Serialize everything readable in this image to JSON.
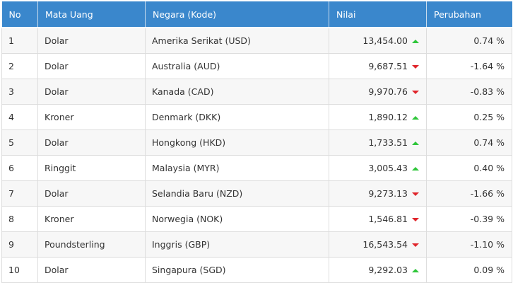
{
  "headers": [
    "No",
    "Mata Uang",
    "Negara (Kode)",
    "Nilai",
    "Perubahan"
  ],
  "rows": [
    {
      "no": "1",
      "currency": "Dolar",
      "country": "Amerika Serikat (USD)",
      "value": "13,454.00",
      "trend": "up",
      "change": "0.74 %"
    },
    {
      "no": "2",
      "currency": "Dolar",
      "country": "Australia (AUD)",
      "value": "9,687.51",
      "trend": "down",
      "change": "-1.64 %"
    },
    {
      "no": "3",
      "currency": "Dolar",
      "country": "Kanada (CAD)",
      "value": "9,970.76",
      "trend": "down",
      "change": "-0.83 %"
    },
    {
      "no": "4",
      "currency": "Kroner",
      "country": "Denmark (DKK)",
      "value": "1,890.12",
      "trend": "up",
      "change": "0.25 %"
    },
    {
      "no": "5",
      "currency": "Dolar",
      "country": "Hongkong (HKD)",
      "value": "1,733.51",
      "trend": "up",
      "change": "0.74 %"
    },
    {
      "no": "6",
      "currency": "Ringgit",
      "country": "Malaysia (MYR)",
      "value": "3,005.43",
      "trend": "up",
      "change": "0.40 %"
    },
    {
      "no": "7",
      "currency": "Dolar",
      "country": "Selandia Baru (NZD)",
      "value": "9,273.13",
      "trend": "down",
      "change": "-1.66 %"
    },
    {
      "no": "8",
      "currency": "Kroner",
      "country": "Norwegia (NOK)",
      "value": "1,546.81",
      "trend": "down",
      "change": "-0.39 %"
    },
    {
      "no": "9",
      "currency": "Poundsterling",
      "country": "Inggris (GBP)",
      "value": "16,543.54",
      "trend": "down",
      "change": "-1.10 %"
    },
    {
      "no": "10",
      "currency": "Dolar",
      "country": "Singapura (SGD)",
      "value": "9,292.03",
      "trend": "up",
      "change": "0.09 %"
    }
  ],
  "colors": {
    "header_bg": "#3a87cc",
    "up": "#2fc63a",
    "down": "#e0252b"
  }
}
